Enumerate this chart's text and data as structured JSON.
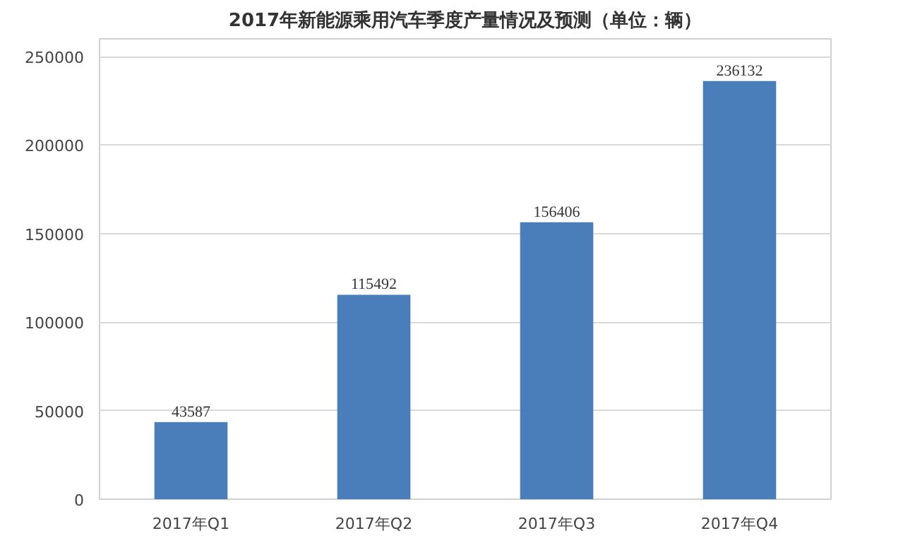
{
  "chart_data": {
    "type": "bar",
    "title": "2017年新能源乘用汽车季度产量情况及预测（单位：辆）",
    "categories": [
      "2017年Q1",
      "2017年Q2",
      "2017年Q3",
      "2017年Q4"
    ],
    "values": [
      43587,
      115492,
      156406,
      236132
    ],
    "color": "#4a7ebb",
    "data_labels": true,
    "ylim": [
      0,
      260000
    ],
    "yticks": [
      0,
      50000,
      100000,
      150000,
      200000,
      250000
    ],
    "grid": "y"
  }
}
